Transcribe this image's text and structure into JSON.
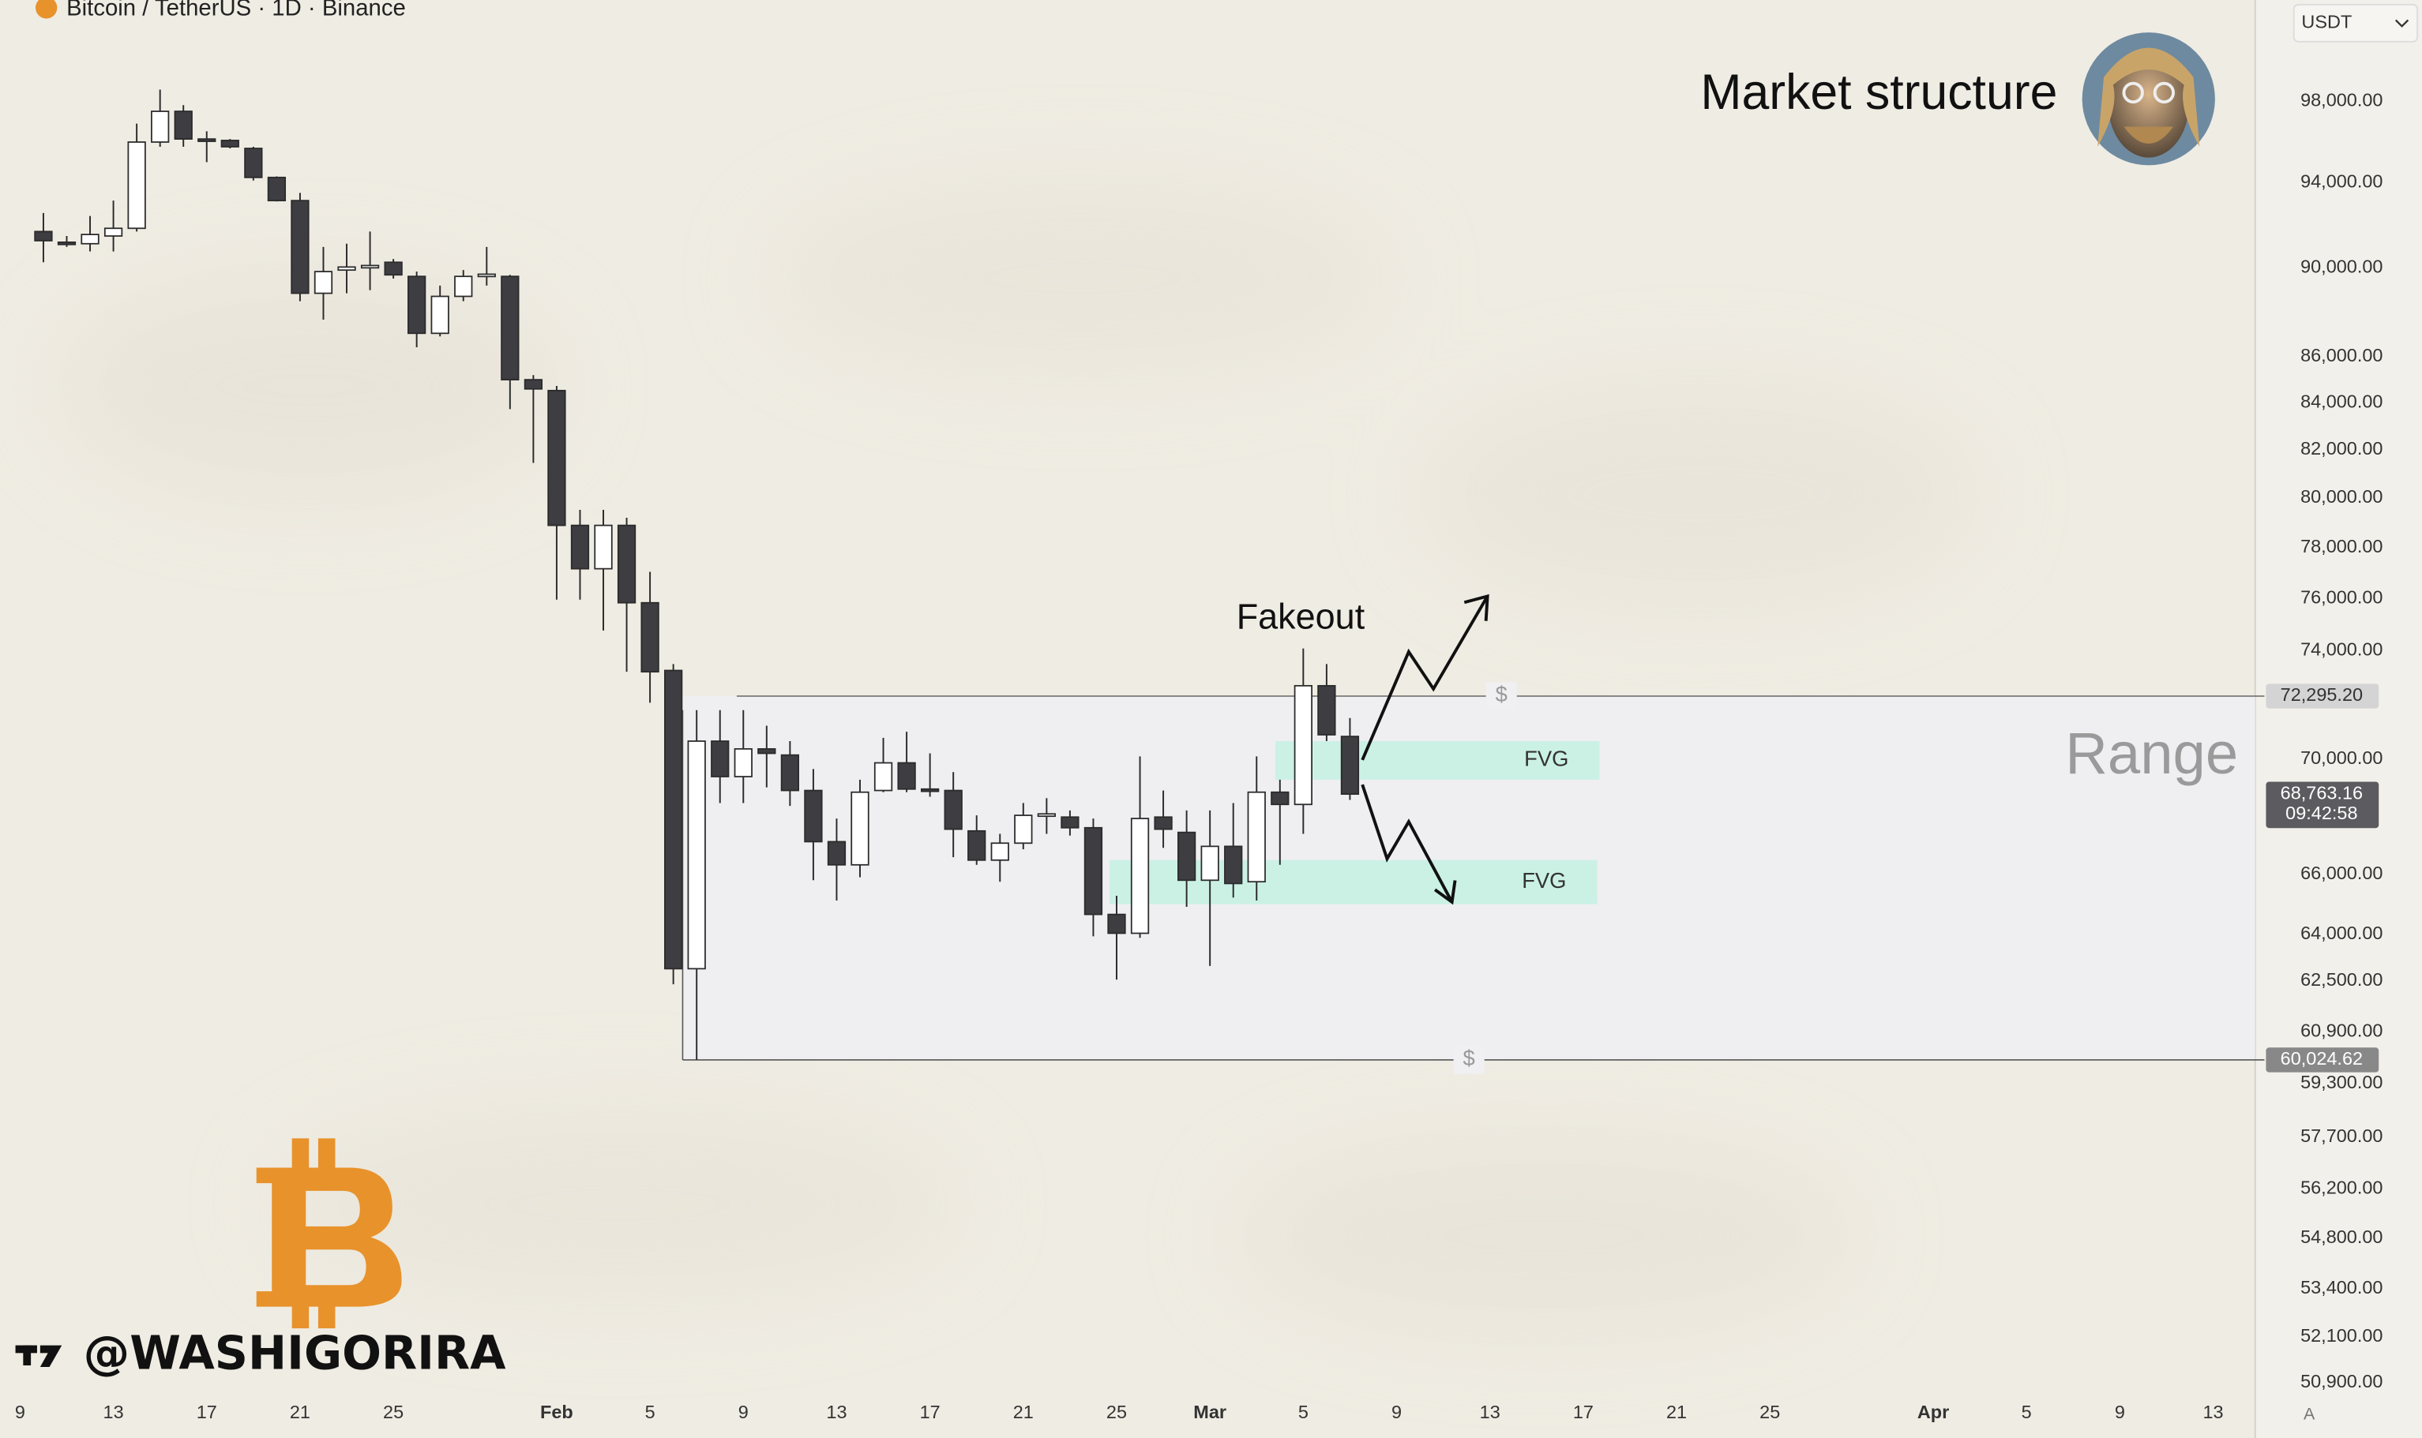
{
  "chart_data": {
    "type": "candlestick",
    "title": "Bitcoin / TetherUS · 1D · Binance",
    "currency": "USDT",
    "headline": "Market structure",
    "watermark": "@WASHIGORIRA",
    "auto_scale_label": "A",
    "log_scale": true,
    "grid": false,
    "up_color": "#ffffff",
    "down_color": "#3d3d42",
    "wick_color": "#2b2b2b",
    "xlim": [
      8.14,
      104.8
    ],
    "ylim": [
      50700,
      103200
    ],
    "xticks": [
      9,
      13,
      17,
      21,
      25,
      {
        "value": 32,
        "label": "Feb"
      },
      {
        "value": 36,
        "label": "5"
      },
      {
        "value": 40,
        "label": "9"
      },
      {
        "value": 44,
        "label": "13"
      },
      {
        "value": 48,
        "label": "17"
      },
      {
        "value": 52,
        "label": "21"
      },
      {
        "value": 56,
        "label": "25"
      },
      {
        "value": 60,
        "label": "Mar"
      },
      {
        "value": 64,
        "label": "5"
      },
      {
        "value": 68,
        "label": "9"
      },
      {
        "value": 72,
        "label": "13"
      },
      {
        "value": 76,
        "label": "17"
      },
      {
        "value": 80,
        "label": "21"
      },
      {
        "value": 84,
        "label": "25"
      },
      {
        "value": 91,
        "label": "Apr"
      },
      {
        "value": 95,
        "label": "5"
      },
      {
        "value": 99,
        "label": "9"
      },
      {
        "value": 103,
        "label": "13"
      }
    ],
    "yticks": [
      {
        "value": 98000,
        "label": "98,000.00"
      },
      {
        "value": 94000,
        "label": "94,000.00"
      },
      {
        "value": 90000,
        "label": "90,000.00"
      },
      {
        "value": 86000,
        "label": "86,000.00"
      },
      {
        "value": 84000,
        "label": "84,000.00"
      },
      {
        "value": 82000,
        "label": "82,000.00"
      },
      {
        "value": 80000,
        "label": "80,000.00"
      },
      {
        "value": 78000,
        "label": "78,000.00"
      },
      {
        "value": 76000,
        "label": "76,000.00"
      },
      {
        "value": 74000,
        "label": "74,000.00"
      },
      {
        "value": 70000,
        "label": "70,000.00"
      },
      {
        "value": 66000,
        "label": "66,000.00"
      },
      {
        "value": 64000,
        "label": "64,000.00"
      },
      {
        "value": 62500,
        "label": "62,500.00"
      },
      {
        "value": 60900,
        "label": "60,900.00"
      },
      {
        "value": 59300,
        "label": "59,300.00"
      },
      {
        "value": 57700,
        "label": "57,700.00"
      },
      {
        "value": 56200,
        "label": "56,200.00"
      },
      {
        "value": 54800,
        "label": "54,800.00"
      },
      {
        "value": 53400,
        "label": "53,400.00"
      },
      {
        "value": 52100,
        "label": "52,100.00"
      },
      {
        "value": 50900,
        "label": "50,900.00"
      }
    ],
    "x": [
      10,
      11,
      12,
      13,
      14,
      15,
      16,
      17,
      18,
      19,
      20,
      21,
      22,
      23,
      24,
      25,
      26,
      27,
      28,
      29,
      30,
      31,
      32,
      33,
      34,
      35,
      36,
      37,
      38,
      39,
      40,
      41,
      42,
      43,
      44,
      45,
      46,
      47,
      48,
      49,
      50,
      51,
      52,
      53,
      54,
      55,
      56,
      57,
      58,
      59,
      60,
      61,
      62,
      63,
      64,
      65,
      66
    ],
    "open": [
      91680,
      91180,
      91110,
      91470,
      91830,
      95970,
      97490,
      96120,
      96050,
      95660,
      94250,
      93140,
      88830,
      89890,
      90030,
      90250,
      89600,
      87030,
      88690,
      89600,
      89600,
      84990,
      84520,
      78890,
      77160,
      78890,
      75830,
      73250,
      62890,
      70650,
      69380,
      70370,
      70150,
      68890,
      67110,
      66320,
      68890,
      69870,
      68940,
      68890,
      67480,
      66480,
      67060,
      68020,
      67960,
      67590,
      64660,
      64040,
      67960,
      67430,
      65800,
      66950,
      65750,
      68830,
      68400,
      72680,
      70820
    ],
    "high": [
      92550,
      91470,
      92410,
      93140,
      96880,
      98580,
      97800,
      96500,
      96120,
      95740,
      94300,
      93510,
      90960,
      91110,
      91680,
      90400,
      89820,
      89180,
      89890,
      90960,
      89670,
      85190,
      84720,
      79520,
      79520,
      79200,
      77040,
      73490,
      71780,
      71780,
      71780,
      71210,
      70650,
      69650,
      67910,
      69270,
      70770,
      70990,
      70210,
      69540,
      68020,
      67380,
      68450,
      68620,
      68190,
      67910,
      65280,
      70100,
      68890,
      68190,
      68190,
      68450,
      70100,
      69270,
      74080,
      73490,
      71490
    ],
    "low": [
      90250,
      90960,
      90750,
      90750,
      91680,
      95740,
      95740,
      94990,
      95660,
      94100,
      93100,
      88470,
      87640,
      88830,
      88970,
      89500,
      86410,
      86890,
      88470,
      89180,
      83720,
      81450,
      75950,
      75950,
      74760,
      73200,
      72050,
      62390,
      60024.62,
      68450,
      68450,
      69000,
      68350,
      65800,
      65120,
      65900,
      68830,
      68830,
      68670,
      66580,
      66320,
      65750,
      66850,
      67380,
      67320,
      63940,
      62540,
      63890,
      66900,
      64910,
      62980,
      65220,
      65120,
      66320,
      67380,
      70650,
      68560
    ],
    "close": [
      91250,
      91110,
      91540,
      91830,
      95970,
      97490,
      96120,
      96050,
      95740,
      94250,
      93140,
      88830,
      89820,
      90030,
      90100,
      89670,
      87030,
      88690,
      89600,
      89700,
      84990,
      84590,
      78890,
      77160,
      78890,
      75830,
      73200,
      62890,
      70650,
      69380,
      70370,
      70210,
      68890,
      67110,
      66320,
      68830,
      69870,
      68940,
      68890,
      67540,
      66480,
      67060,
      68020,
      68070,
      67590,
      64660,
      64040,
      67910,
      67540,
      65800,
      66950,
      65690,
      68830,
      68400,
      72680,
      70880,
      68763.16
    ],
    "last_price": {
      "value": 68763.16,
      "label": "68,763.16"
    },
    "countdown": "09:42:58",
    "range": {
      "label": "Range",
      "marker": "$",
      "start": 37.4,
      "high": {
        "value": 72295.2,
        "label": "72,295.20"
      },
      "low": {
        "value": 60024.62,
        "label": "60,024.62"
      }
    },
    "zones": [
      {
        "label": "FVG",
        "x": [
          62.8,
          76.7
        ],
        "y": [
          69270,
          70650
        ],
        "color": "#c4f1e3"
      },
      {
        "label": "FVG",
        "x": [
          55.7,
          76.6
        ],
        "y": [
          65000,
          66480
        ],
        "color": "#c4f1e3"
      }
    ],
    "annotation": "Fakeout"
  }
}
